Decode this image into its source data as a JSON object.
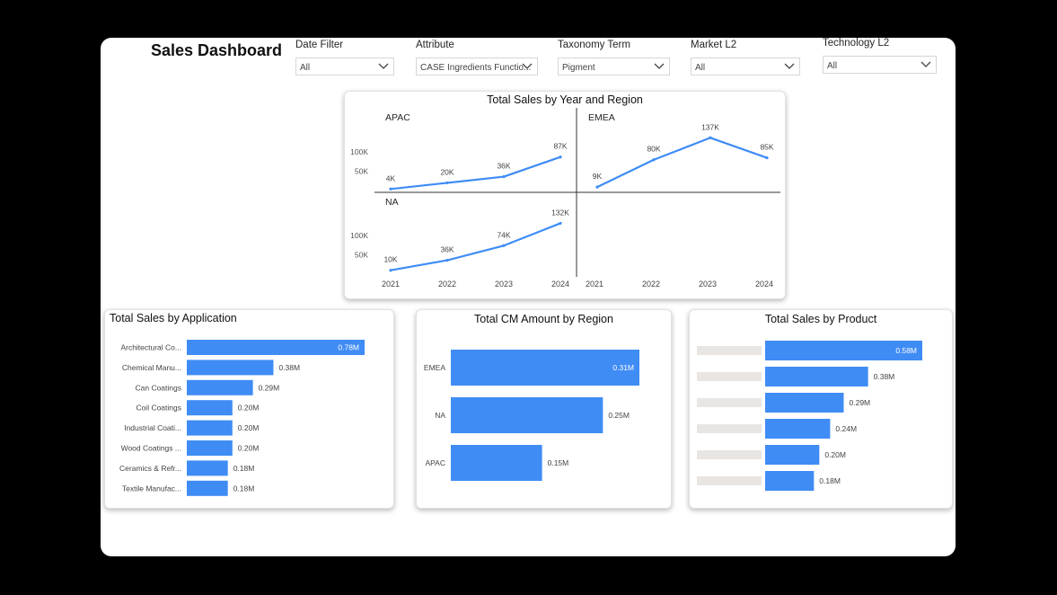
{
  "title": "Sales Dashboard",
  "filters": [
    {
      "label": "Date Filter",
      "value": "All"
    },
    {
      "label": "Attribute",
      "value": "CASE Ingredients Functio..."
    },
    {
      "label": "Taxonomy Term",
      "value": "Pigment"
    },
    {
      "label": "Market L2",
      "value": "All"
    },
    {
      "label": "Technology L2",
      "value": "All"
    }
  ],
  "colors": {
    "bar": "#3F8CF5",
    "placeholder": "#E9E5E2",
    "text": "#252423"
  },
  "icons": {
    "slicer_dropdown": "chevron-down-icon"
  },
  "chart_data": [
    {
      "type": "line",
      "title": "Total Sales by Year and Region",
      "x": [
        "2021",
        "2022",
        "2023",
        "2024"
      ],
      "yticks": [
        "100K",
        "50K"
      ],
      "series": [
        {
          "name": "APAC",
          "values": [
            4,
            20,
            36,
            87
          ],
          "labels": [
            "4K",
            "20K",
            "36K",
            "87K"
          ]
        },
        {
          "name": "EMEA",
          "values": [
            9,
            80,
            137,
            85
          ],
          "labels": [
            "9K",
            "80K",
            "137K",
            "85K"
          ]
        },
        {
          "name": "NA",
          "values": [
            10,
            36,
            74,
            132
          ],
          "labels": [
            "10K",
            "36K",
            "74K",
            "132K"
          ]
        }
      ]
    },
    {
      "type": "bar",
      "title": "Total Sales by Application",
      "categories": [
        "Architectural Co...",
        "Chemical Manu...",
        "Can Coatings",
        "Coil Coatings",
        "Industrial Coati...",
        "Wood Coatings ...",
        "Ceramics & Refr...",
        "Textile Manufac..."
      ],
      "values": [
        0.78,
        0.38,
        0.29,
        0.2,
        0.2,
        0.2,
        0.18,
        0.18
      ],
      "labels": [
        "0.78M",
        "0.38M",
        "0.29M",
        "0.20M",
        "0.20M",
        "0.20M",
        "0.18M",
        "0.18M"
      ]
    },
    {
      "type": "bar",
      "title": "Total CM Amount by Region",
      "categories": [
        "EMEA",
        "NA",
        "APAC"
      ],
      "values": [
        0.31,
        0.25,
        0.15
      ],
      "labels": [
        "0.31M",
        "0.25M",
        "0.15M"
      ]
    },
    {
      "type": "bar",
      "title": "Total Sales by Product",
      "categories": [
        "",
        "",
        "",
        "",
        "",
        ""
      ],
      "values": [
        0.58,
        0.38,
        0.29,
        0.24,
        0.2,
        0.18
      ],
      "labels": [
        "0.58M",
        "0.38M",
        "0.29M",
        "0.24M",
        "0.20M",
        "0.18M"
      ]
    }
  ]
}
